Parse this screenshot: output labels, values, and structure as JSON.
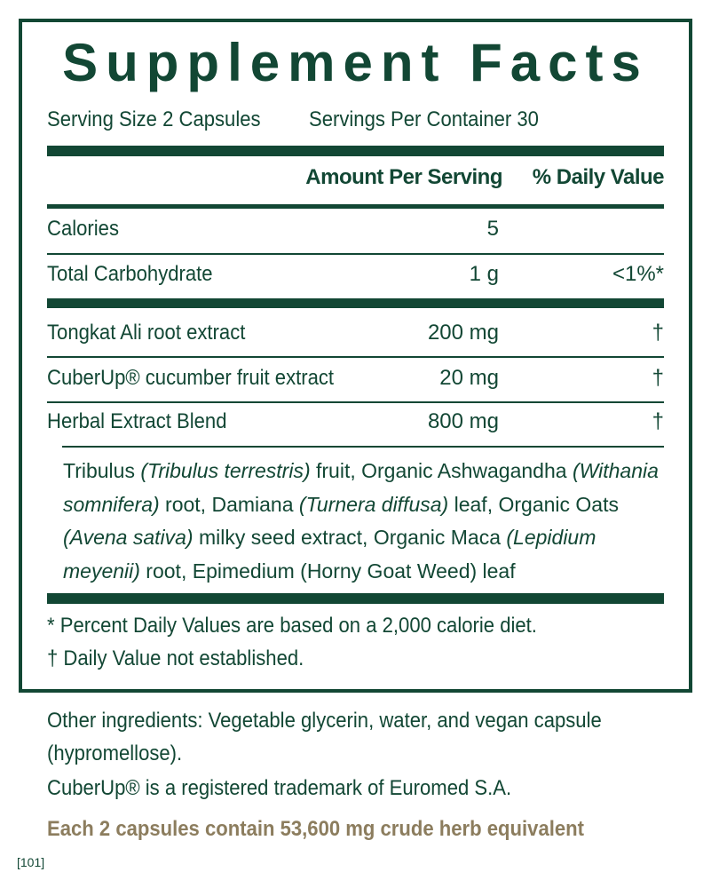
{
  "title": "Supplement Facts",
  "serving_size": "Serving Size 2 Capsules",
  "servings_per_container": "Servings Per Container 30",
  "headers": {
    "amount": "Amount Per Serving",
    "dv": "% Daily Value"
  },
  "rows": [
    {
      "name": "Calories",
      "amount": "5",
      "dv": ""
    },
    {
      "name": "Total Carbohydrate",
      "amount": "1 g",
      "dv": "<1%*"
    },
    {
      "name": "Tongkat Ali root extract",
      "amount": "200 mg",
      "dv": "†"
    },
    {
      "name": "CuberUp® cucumber fruit extract",
      "amount": "20 mg",
      "dv": "†"
    },
    {
      "name": "Herbal Extract Blend",
      "amount": "800 mg",
      "dv": "†"
    }
  ],
  "blend": [
    {
      "text": "Tribulus ",
      "italic": false
    },
    {
      "text": "(Tribulus terrestris)",
      "italic": true
    },
    {
      "text": " fruit, Organic Ashwagandha ",
      "italic": false
    },
    {
      "text": "(Withania somnifera)",
      "italic": true
    },
    {
      "text": " root, Damiana ",
      "italic": false
    },
    {
      "text": "(Turnera diffusa)",
      "italic": true
    },
    {
      "text": " leaf, Organic Oats ",
      "italic": false
    },
    {
      "text": "(Avena sativa)",
      "italic": true
    },
    {
      "text": " milky seed extract, Organic Maca ",
      "italic": false
    },
    {
      "text": "(Lepidium meyenii)",
      "italic": true
    },
    {
      "text": " root, Epimedium (Horny Goat Weed) leaf",
      "italic": false
    }
  ],
  "footnotes": [
    "*  Percent Daily Values are based on a 2,000 calorie diet.",
    "† Daily Value not established."
  ],
  "other_ingredients": "Other ingredients: Vegetable glycerin, water, and vegan capsule (hypromellose).",
  "trademark": "CuberUp® is a registered trademark of Euromed S.A.",
  "herb_equivalent": "Each 2 capsules contain 53,600 mg crude herb equivalent",
  "code": "[101]",
  "colors": {
    "green": "#124734",
    "tan": "#8c7d5e"
  }
}
